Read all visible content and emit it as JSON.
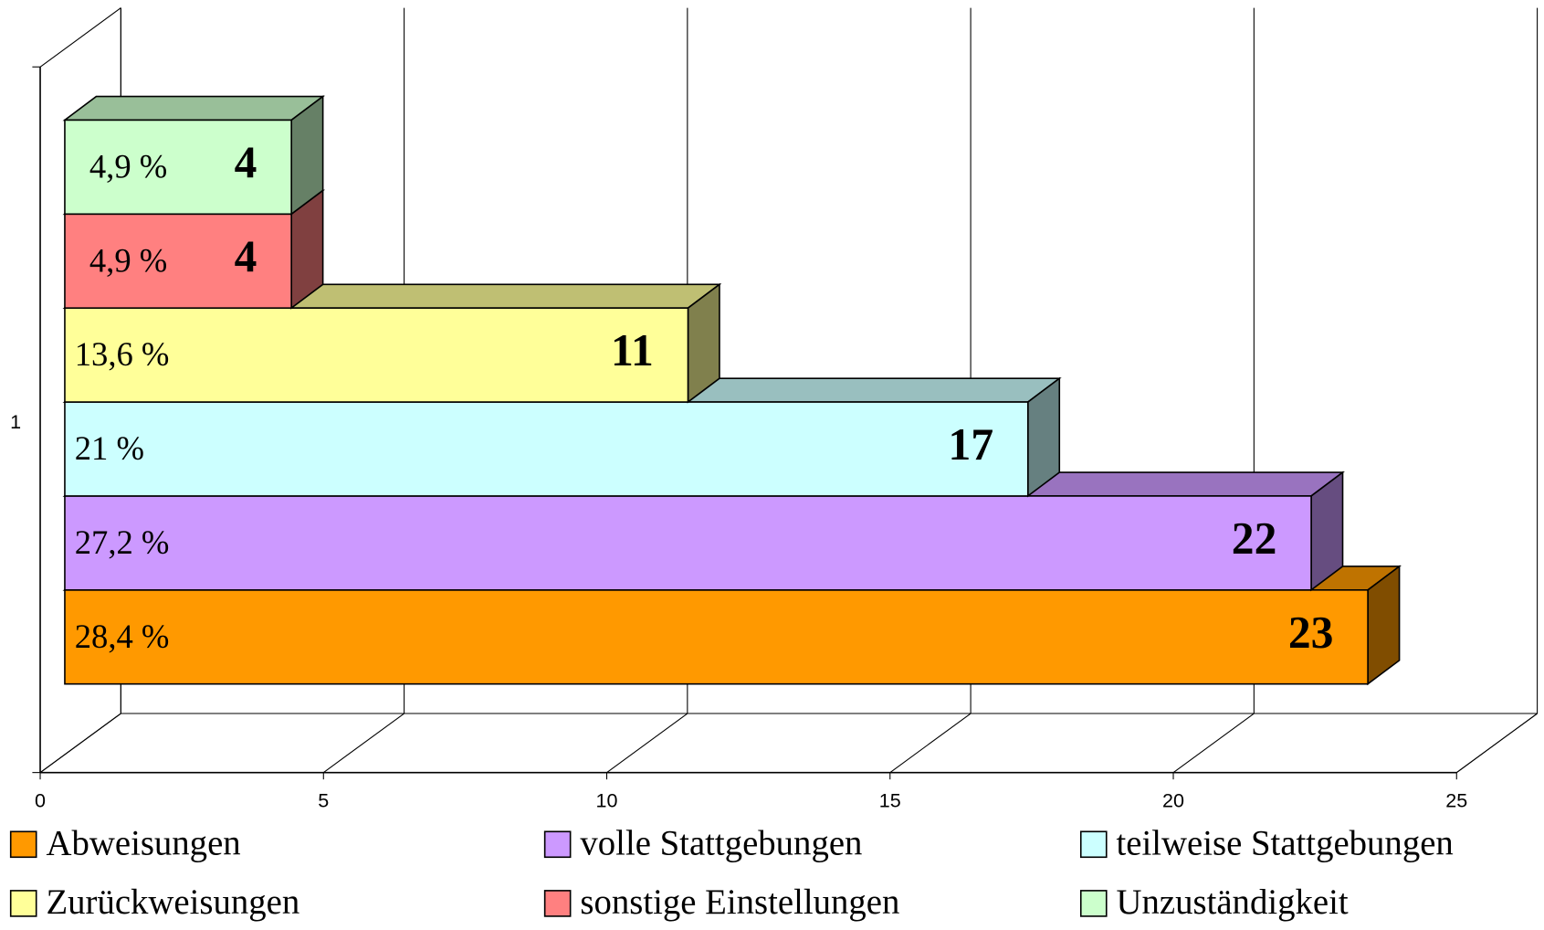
{
  "chart_data": {
    "type": "bar3d_horizontal",
    "categories": [
      "1"
    ],
    "xlim": [
      0,
      25
    ],
    "xticks": [
      0,
      5,
      10,
      15,
      20,
      25
    ],
    "grid": true,
    "legend": "bottom",
    "series": [
      {
        "name": "Abweisungen",
        "color": "#ff9900",
        "values": [
          23
        ],
        "percent": "28,4 %"
      },
      {
        "name": "volle Stattgebungen",
        "color": "#cc99ff",
        "values": [
          22
        ],
        "percent": "27,2 %"
      },
      {
        "name": "teilweise Stattgebungen",
        "color": "#ccffff",
        "values": [
          17
        ],
        "percent": "21 %"
      },
      {
        "name": "Zurückweisungen",
        "color": "#ffff99",
        "values": [
          11
        ],
        "percent": "13,6 %"
      },
      {
        "name": "sonstige Einstellungen",
        "color": "#ff8080",
        "values": [
          4
        ],
        "percent": "4,9 %"
      },
      {
        "name": "Unzuständigkeit",
        "color": "#ccffcc",
        "values": [
          4
        ],
        "percent": "4,9 %"
      }
    ]
  }
}
